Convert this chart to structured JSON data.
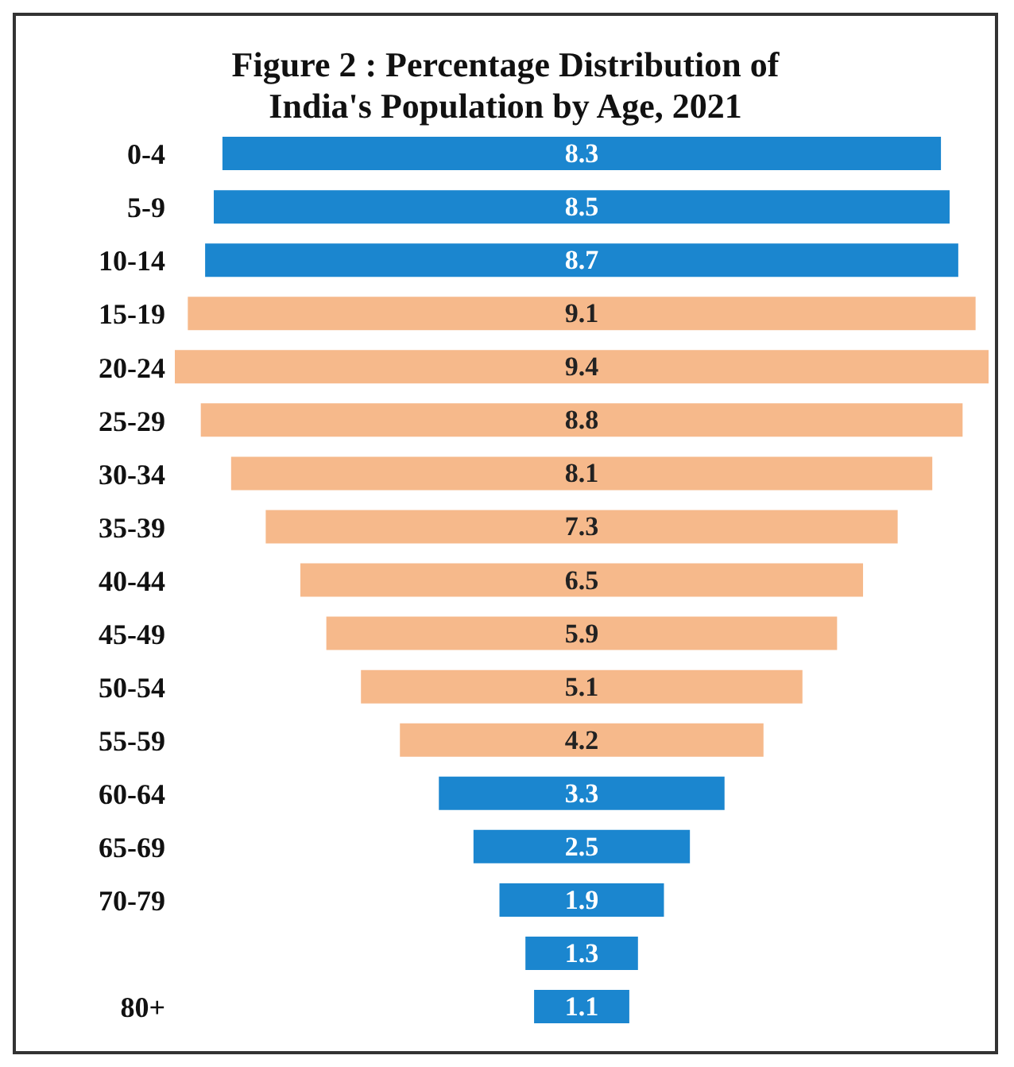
{
  "chart_data": {
    "type": "other",
    "title": "Figure 2 : Percentage Distribution of\nIndia's Population by Age, 2021",
    "categories": [
      "0-4",
      "5-9",
      "10-14",
      "15-19",
      "20-24",
      "25-29",
      "30-34",
      "35-39",
      "40-44",
      "45-49",
      "50-54",
      "55-59",
      "60-64",
      "65-69",
      "70-79",
      null,
      "80+"
    ],
    "values": [
      8.3,
      8.5,
      8.7,
      9.1,
      9.4,
      8.8,
      8.1,
      7.3,
      6.5,
      5.9,
      5.1,
      4.2,
      3.3,
      2.5,
      1.9,
      1.3,
      1.1
    ],
    "colors": [
      "#1b86cf",
      "#1b86cf",
      "#1b86cf",
      "#f6b98b",
      "#f6b98b",
      "#f6b98b",
      "#f6b98b",
      "#f6b98b",
      "#f6b98b",
      "#f6b98b",
      "#f6b98b",
      "#f6b98b",
      "#1b86cf",
      "#1b86cf",
      "#1b86cf",
      "#1b86cf",
      "#1b86cf"
    ],
    "data_labels": true
  }
}
